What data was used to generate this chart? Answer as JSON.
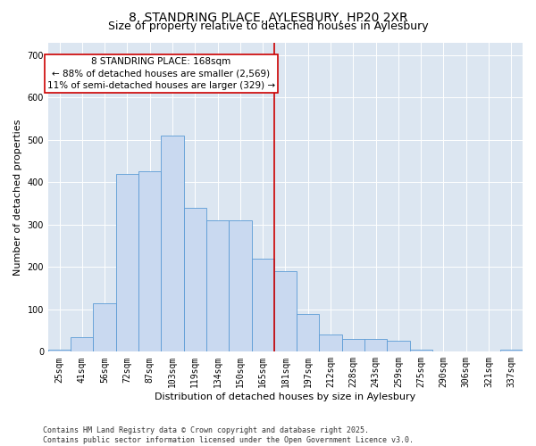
{
  "title": "8, STANDRING PLACE, AYLESBURY, HP20 2XR",
  "subtitle": "Size of property relative to detached houses in Aylesbury",
  "xlabel": "Distribution of detached houses by size in Aylesbury",
  "ylabel": "Number of detached properties",
  "categories": [
    "25sqm",
    "41sqm",
    "56sqm",
    "72sqm",
    "87sqm",
    "103sqm",
    "119sqm",
    "134sqm",
    "150sqm",
    "165sqm",
    "181sqm",
    "197sqm",
    "212sqm",
    "228sqm",
    "243sqm",
    "259sqm",
    "275sqm",
    "290sqm",
    "306sqm",
    "321sqm",
    "337sqm"
  ],
  "bar_heights": [
    5,
    35,
    115,
    420,
    425,
    510,
    340,
    310,
    310,
    220,
    190,
    90,
    40,
    30,
    30,
    25,
    5,
    0,
    0,
    0,
    5
  ],
  "bar_color": "#c9d9f0",
  "bar_edge_color": "#5b9bd5",
  "vline_x": 9.5,
  "annotation_line1": "8 STANDRING PLACE: 168sqm",
  "annotation_line2": "← 88% of detached houses are smaller (2,569)",
  "annotation_line3": "11% of semi-detached houses are larger (329) →",
  "annotation_box_color": "#ffffff",
  "annotation_box_edge": "#cc0000",
  "vline_color": "#cc0000",
  "ylim": [
    0,
    730
  ],
  "yticks": [
    0,
    100,
    200,
    300,
    400,
    500,
    600,
    700
  ],
  "background_color": "#dce6f1",
  "footer": "Contains HM Land Registry data © Crown copyright and database right 2025.\nContains public sector information licensed under the Open Government Licence v3.0.",
  "title_fontsize": 10,
  "subtitle_fontsize": 9,
  "axis_label_fontsize": 8,
  "tick_fontsize": 7,
  "annotation_fontsize": 7.5
}
